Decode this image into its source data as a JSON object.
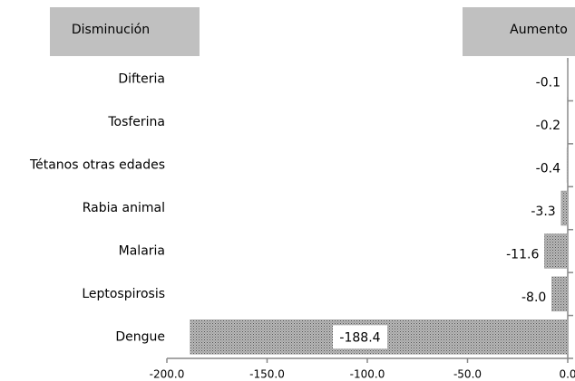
{
  "chart_data": {
    "type": "barh",
    "annotations": [
      "Disminución",
      "Aumento"
    ],
    "categories": [
      "Difteria",
      "Tosferina",
      "Tétanos otras edades",
      "Rabia animal",
      "Malaria",
      "Leptospirosis",
      "Dengue"
    ],
    "values": [
      -0.1,
      -0.2,
      -0.4,
      -3.3,
      -11.6,
      -8.0,
      -188.4
    ],
    "value_labels": [
      "-0.1",
      "-0.2",
      "-0.4",
      "-3.3",
      "-11.6",
      "-8.0",
      "-188.4"
    ],
    "color": "#9a9a9a",
    "xlim": [
      -200,
      0
    ],
    "xticks": [
      {
        "value": -200,
        "label": "-200.0"
      },
      {
        "value": -150,
        "label": "-150.0"
      },
      {
        "value": -100,
        "label": "-100.0"
      },
      {
        "value": -50,
        "label": "-50.0"
      },
      {
        "value": 0,
        "label": "0.0"
      }
    ]
  }
}
